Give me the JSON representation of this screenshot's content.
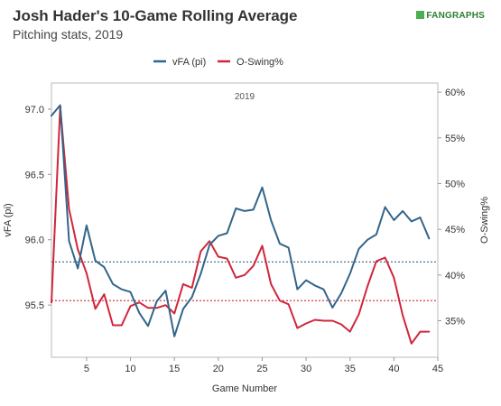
{
  "header": {
    "title": "Josh Hader's 10-Game Rolling Average",
    "subtitle": "Pitching stats, 2019",
    "brand": "FANGRAPHS"
  },
  "chart_data": {
    "type": "line",
    "panel_label": "2019",
    "xlabel": "Game Number",
    "ylabel_left": "vFA (pi)",
    "ylabel_right": "O-Swing%",
    "xlim": [
      1,
      45
    ],
    "ylim_left": [
      95.1,
      97.2
    ],
    "ylim_right": [
      31.0,
      61.0
    ],
    "x_ticks": [
      5,
      10,
      15,
      20,
      25,
      30,
      35,
      40,
      45
    ],
    "y_ticks_left": [
      "95.5",
      "96.0",
      "96.5",
      "97.0"
    ],
    "y_ticks_right": [
      "35%",
      "40%",
      "45%",
      "50%",
      "55%",
      "60%"
    ],
    "legend_position": "top-center",
    "colors": {
      "vFA": "#33658a",
      "oswing": "#d1263a",
      "vFA_avg": "#33658a",
      "oswing_avg": "#d1263a"
    },
    "series": [
      {
        "name": "vFA (pi)",
        "axis": "left",
        "x": [
          1,
          2,
          3,
          4,
          5,
          6,
          7,
          8,
          9,
          10,
          11,
          12,
          13,
          14,
          15,
          16,
          17,
          18,
          19,
          20,
          21,
          22,
          23,
          24,
          25,
          26,
          27,
          28,
          29,
          30,
          31,
          32,
          33,
          34,
          35,
          36,
          37,
          38,
          39,
          40,
          41,
          42,
          43,
          44
        ],
        "values": [
          96.95,
          97.03,
          95.99,
          95.78,
          96.11,
          95.84,
          95.79,
          95.66,
          95.62,
          95.6,
          95.44,
          95.34,
          95.53,
          95.61,
          95.26,
          95.47,
          95.56,
          95.74,
          95.96,
          96.03,
          96.05,
          96.24,
          96.22,
          96.23,
          96.4,
          96.15,
          95.97,
          95.94,
          95.62,
          95.69,
          95.65,
          95.62,
          95.48,
          95.59,
          95.74,
          95.93,
          96.0,
          96.04,
          96.25,
          96.15,
          96.22,
          96.14,
          96.17,
          96.01
        ]
      },
      {
        "name": "O-Swing%",
        "axis": "right",
        "x": [
          1,
          2,
          3,
          4,
          5,
          6,
          7,
          8,
          9,
          10,
          11,
          12,
          13,
          14,
          15,
          16,
          17,
          18,
          19,
          20,
          21,
          22,
          23,
          24,
          25,
          26,
          27,
          28,
          29,
          30,
          31,
          32,
          33,
          34,
          35,
          36,
          37,
          38,
          39,
          40,
          41,
          42,
          43,
          44
        ],
        "values": [
          37.0,
          58.4,
          47.2,
          42.8,
          40.2,
          36.3,
          37.9,
          34.5,
          34.5,
          36.6,
          37.0,
          36.4,
          36.4,
          36.7,
          35.8,
          39.0,
          38.6,
          42.6,
          43.7,
          42.0,
          41.8,
          39.7,
          40.0,
          41.0,
          43.2,
          39.0,
          37.2,
          36.8,
          34.2,
          34.7,
          35.1,
          35.0,
          35.0,
          34.6,
          33.8,
          35.7,
          38.8,
          41.5,
          41.9,
          39.7,
          35.6,
          32.5,
          33.8,
          33.8
        ]
      }
    ],
    "averages": [
      {
        "name": "vFA (pi)",
        "axis": "left",
        "value": 95.83
      },
      {
        "name": "O-Swing%",
        "axis": "right",
        "value": 37.2
      }
    ]
  }
}
